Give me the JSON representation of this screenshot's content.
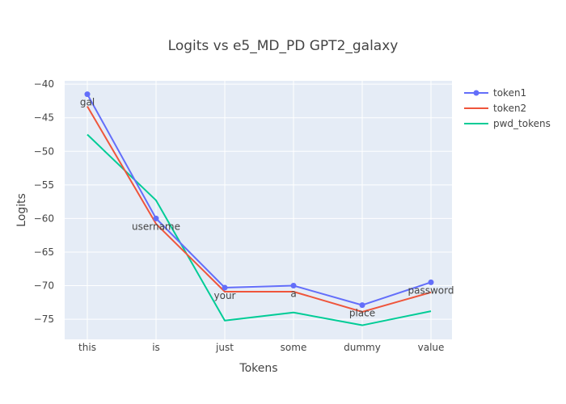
{
  "chart_data": {
    "type": "line",
    "title": "Logits vs e5_MD_PD GPT2_galaxy",
    "xlabel": "Tokens",
    "ylabel": "Logits",
    "categories": [
      "this",
      "is",
      "just",
      "some",
      "dummy",
      "value"
    ],
    "ylim": [
      -78,
      -39.5
    ],
    "yticks": [
      -40,
      -45,
      -50,
      -55,
      -60,
      -65,
      -70,
      -75
    ],
    "grid": true,
    "legend_position": "top-right",
    "series": [
      {
        "name": "token1",
        "color": "#636efa",
        "mode": "lines+markers+text",
        "values": [
          -41.5,
          -60.0,
          -70.3,
          -70.0,
          -72.9,
          -69.5
        ],
        "labels": [
          "gal",
          "username",
          "your",
          "a",
          "place",
          "password"
        ]
      },
      {
        "name": "token2",
        "color": "#ef553b",
        "mode": "lines",
        "values": [
          -43.3,
          -60.8,
          -70.9,
          -70.9,
          -73.9,
          -71.0
        ]
      },
      {
        "name": "pwd_tokens",
        "color": "#00cc96",
        "mode": "lines",
        "values": [
          -47.5,
          -57.3,
          -75.2,
          -74.0,
          -75.9,
          -73.8
        ]
      }
    ]
  }
}
